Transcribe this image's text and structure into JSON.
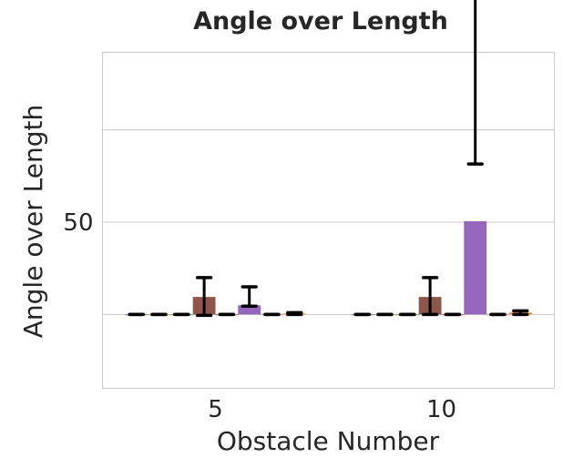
{
  "chart_data": {
    "type": "bar",
    "title": "Angle over Length",
    "xlabel": "Obstacle Number",
    "ylabel": "Angle over Length",
    "categories": [
      "5",
      "10"
    ],
    "ylim": [
      -40,
      142
    ],
    "yticks": [
      0,
      50,
      100
    ],
    "ytick_labels": [
      "",
      "50",
      ""
    ],
    "grid": "horizontal",
    "series": [
      {
        "color": "#1f77b4",
        "values": [
          0,
          0
        ],
        "errors": [
          [
            0,
            0
          ],
          [
            0,
            0
          ]
        ]
      },
      {
        "color": "#ff7f0e",
        "values": [
          0,
          0
        ],
        "errors": [
          [
            0,
            0
          ],
          [
            0,
            0
          ]
        ]
      },
      {
        "color": "#2ca02c",
        "values": [
          0,
          0
        ],
        "errors": [
          [
            0,
            0
          ],
          [
            0,
            0
          ]
        ]
      },
      {
        "color": "#8c564b",
        "values": [
          9.5,
          9.5
        ],
        "errors": [
          [
            10,
            10.5
          ],
          [
            9.5,
            10.5
          ]
        ]
      },
      {
        "color": "#d62728",
        "values": [
          0,
          0
        ],
        "errors": [
          [
            0,
            0
          ],
          [
            0,
            0
          ]
        ]
      },
      {
        "color": "#9467bd",
        "values": [
          5,
          50.5
        ],
        "errors": [
          [
            0.5,
            10
          ],
          [
            -31,
            134.5
          ]
        ]
      },
      {
        "color": "#e377c2",
        "values": [
          0,
          0
        ],
        "errors": [
          [
            0,
            0
          ],
          [
            0,
            0
          ]
        ]
      },
      {
        "color": "#ff7f0e",
        "values": [
          0.5,
          1
        ],
        "errors": [
          [
            0.5,
            0.5
          ],
          [
            1,
            1
          ]
        ]
      }
    ]
  }
}
